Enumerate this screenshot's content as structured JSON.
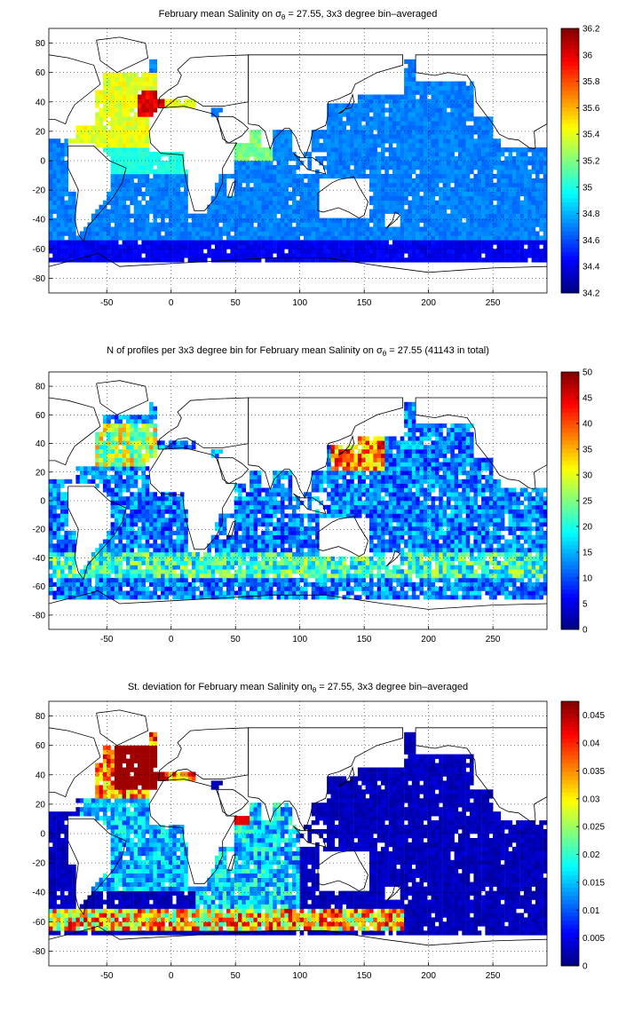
{
  "chart_data": [
    {
      "type": "heatmap",
      "title": "February mean Salinity on σθ = 27.55, 3x3 degree bin–averaged",
      "title_pre": "February mean Salinity on σ",
      "title_sub": "θ",
      "title_post": " = 27.55, 3x3 degree bin–averaged",
      "xlim": [
        -95,
        292
      ],
      "ylim": [
        -90,
        90
      ],
      "xticks": [
        "-50",
        "0",
        "50",
        "100",
        "150",
        "200",
        "250"
      ],
      "yticks": [
        "80",
        "60",
        "40",
        "20",
        "0",
        "-20",
        "-40",
        "-60",
        "-80"
      ],
      "grid": true,
      "colormap": "jet",
      "colorbar": {
        "min": 34.2,
        "max": 36.2,
        "ticks": [
          "36.2",
          "36",
          "35.8",
          "35.6",
          "35.4",
          "35.2",
          "35",
          "34.8",
          "34.6",
          "34.4",
          "34.2"
        ]
      },
      "dominant_values": {
        "southern_ocean": 34.4,
        "south_atlantic_indian_pacific": 34.6,
        "north_pacific": 34.6,
        "subtropical_north_atlantic": 35.4,
        "mediterranean_outflow_max": 36.0
      }
    },
    {
      "type": "heatmap",
      "title": "N of profiles per 3x3 degree bin for February mean Salinity on σθ = 27.55 (41143 in total)",
      "title_pre": "N of profiles per 3x3 degree bin for February mean Salinity on σ",
      "title_sub": "θ",
      "title_post": " = 27.55 (41143 in total)",
      "xlim": [
        -95,
        292
      ],
      "ylim": [
        -90,
        90
      ],
      "xticks": [
        "-50",
        "0",
        "50",
        "100",
        "150",
        "200",
        "250"
      ],
      "yticks": [
        "80",
        "60",
        "40",
        "20",
        "0",
        "-20",
        "-40",
        "-60",
        "-80"
      ],
      "grid": true,
      "colormap": "jet",
      "colorbar": {
        "min": 0,
        "max": 50,
        "ticks": [
          "50",
          "45",
          "40",
          "35",
          "30",
          "25",
          "20",
          "15",
          "10",
          "5",
          "0"
        ]
      },
      "total_profiles": 41143,
      "dominant_values": {
        "open_ocean": 12,
        "kuroshio_region_max": 50,
        "north_atlantic": 25
      }
    },
    {
      "type": "heatmap",
      "title": "St. deviation for February mean Salinity onσθ = 27.55, 3x3 degree bin–averaged",
      "title_pre": "St. deviation for February mean Salinity on",
      "title_sub": "θ",
      "title_post": " = 27.55, 3x3 degree bin–averaged",
      "xlim": [
        -95,
        292
      ],
      "ylim": [
        -90,
        90
      ],
      "xticks": [
        "-50",
        "0",
        "50",
        "100",
        "150",
        "200",
        "250"
      ],
      "yticks": [
        "80",
        "60",
        "40",
        "20",
        "0",
        "-20",
        "-40",
        "-60",
        "-80"
      ],
      "grid": true,
      "colormap": "jet",
      "colorbar": {
        "min": 0,
        "max": 0.0475,
        "ticks": [
          "0.045",
          "0.04",
          "0.035",
          "0.03",
          "0.025",
          "0.02",
          "0.015",
          "0.01",
          "0.005",
          "0"
        ]
      },
      "dominant_values": {
        "pacific": 0.002,
        "indian_ocean": 0.01,
        "north_atlantic_max": 0.047,
        "antarctic_circumpolar_band": 0.04
      }
    }
  ]
}
